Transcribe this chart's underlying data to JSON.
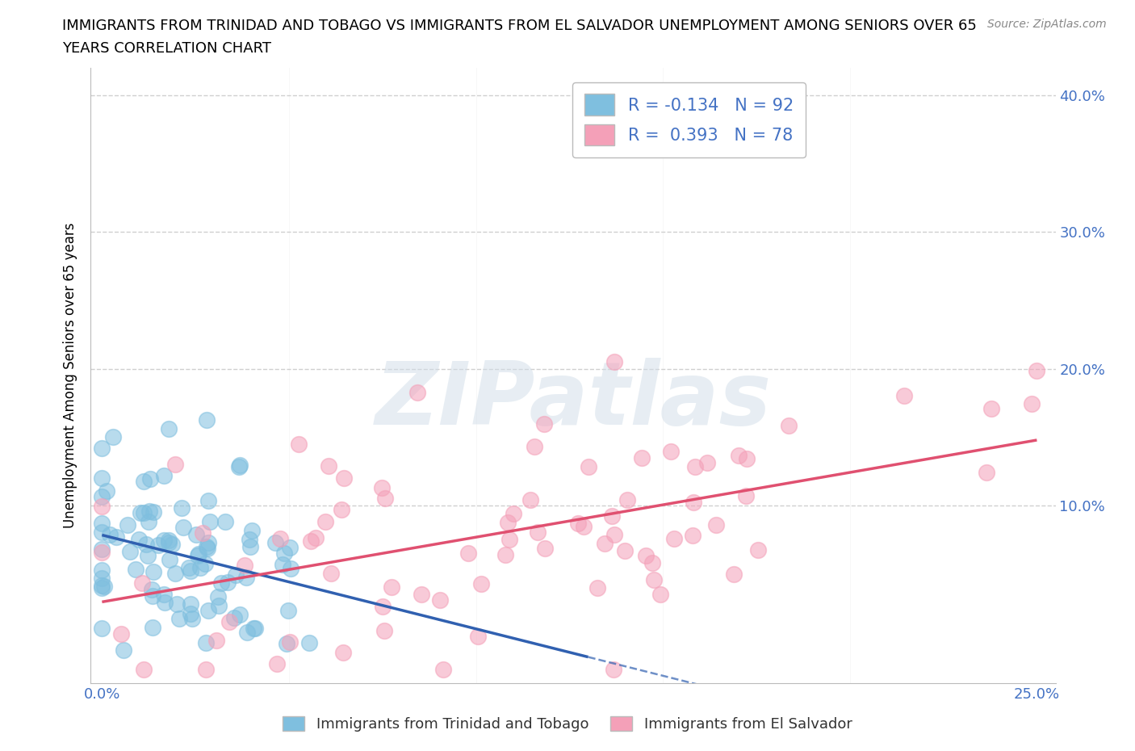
{
  "title_line1": "IMMIGRANTS FROM TRINIDAD AND TOBAGO VS IMMIGRANTS FROM EL SALVADOR UNEMPLOYMENT AMONG SENIORS OVER 65",
  "title_line2": "YEARS CORRELATION CHART",
  "source": "Source: ZipAtlas.com",
  "ylabel": "Unemployment Among Seniors over 65 years",
  "xlim": [
    -0.003,
    0.255
  ],
  "ylim": [
    -0.03,
    0.42
  ],
  "series1_color": "#7fbfdf",
  "series2_color": "#f4a0b8",
  "series1_trendcolor": "#3060b0",
  "series2_trendcolor": "#e05070",
  "series1_label": "Immigrants from Trinidad and Tobago",
  "series2_label": "Immigrants from El Salvador",
  "R1": -0.134,
  "N1": 92,
  "R2": 0.393,
  "N2": 78,
  "watermark": "ZIPatlas",
  "background_color": "#ffffff",
  "grid_color": "#d0d0d0",
  "legend_text_color": "#4472c4",
  "title_fontsize": 13,
  "tick_color": "#4472c4",
  "seed": 42,
  "yticks": [
    0.1,
    0.2,
    0.3,
    0.4
  ],
  "xtick_labels": [
    "0.0%",
    "25.0%"
  ],
  "s1_xmean": 0.022,
  "s1_xstd": 0.018,
  "s1_ymean": 0.062,
  "s1_ystd": 0.038,
  "s2_xmean": 0.105,
  "s2_xstd": 0.062,
  "s2_ymean": 0.075,
  "s2_ystd": 0.06
}
